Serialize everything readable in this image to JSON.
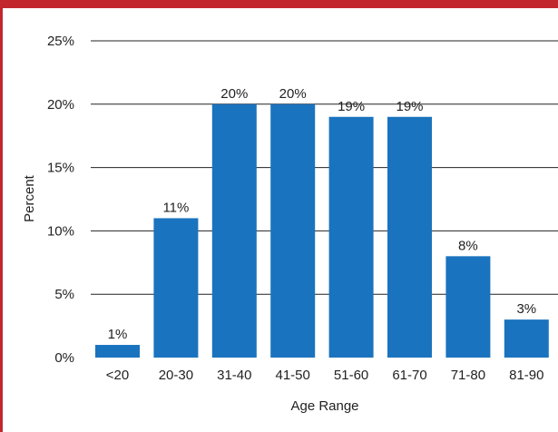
{
  "chart_data": {
    "type": "bar",
    "title": "",
    "xlabel": "Age Range",
    "ylabel": "Percent",
    "categories": [
      "<20",
      "20-30",
      "31-40",
      "41-50",
      "51-60",
      "61-70",
      "71-80",
      "81-90"
    ],
    "values": [
      1,
      11,
      20,
      20,
      19,
      19,
      8,
      3
    ],
    "data_labels": [
      "1%",
      "11%",
      "20%",
      "20%",
      "19%",
      "19%",
      "8%",
      "3%"
    ],
    "y_ticks": [
      0,
      5,
      10,
      15,
      20,
      25
    ],
    "y_tick_labels": [
      "0%",
      "5%",
      "10%",
      "15%",
      "20%",
      "25%"
    ],
    "ylim": [
      0,
      25
    ],
    "grid": "horizontal",
    "legend": "none",
    "colors": {
      "bar": "#1a73be",
      "grid": "#222222",
      "frame": "#c1272d"
    }
  }
}
